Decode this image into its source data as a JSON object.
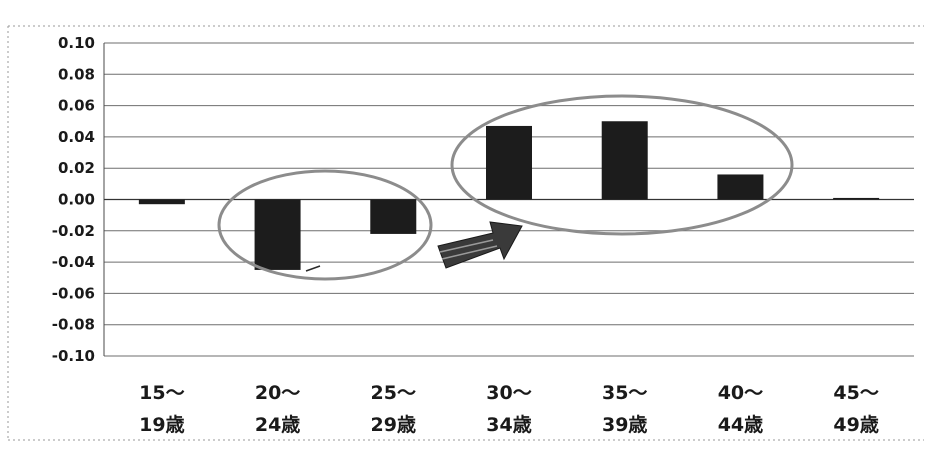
{
  "chart_data": {
    "type": "bar",
    "title": "",
    "xlabel": "",
    "ylabel": "",
    "categories": [
      [
        "15～",
        "19歳"
      ],
      [
        "20～",
        "24歳"
      ],
      [
        "25～",
        "29歳"
      ],
      [
        "30～",
        "34歳"
      ],
      [
        "35～",
        "39歳"
      ],
      [
        "40～",
        "44歳"
      ],
      [
        "45～",
        "49歳"
      ]
    ],
    "values": [
      -0.003,
      -0.045,
      -0.022,
      0.047,
      0.05,
      0.016,
      0.001
    ],
    "ylim": [
      -0.1,
      0.1
    ],
    "yticks": [
      "0.10",
      "0.08",
      "0.06",
      "0.04",
      "0.02",
      "0.00",
      "-0.02",
      "-0.04",
      "-0.06",
      "-0.08",
      "-0.10"
    ],
    "grid": true,
    "bar_color": "#1c1c1c",
    "annotations": {
      "negative_group": [
        "20～24歳",
        "25～29歳"
      ],
      "positive_group": [
        "30～34歳",
        "35～39歳",
        "40～44歳"
      ],
      "arrow": "from negative group to positive group",
      "ellipse_color": "#8c8c8c",
      "arrow_color": "#3a3a3a"
    }
  }
}
